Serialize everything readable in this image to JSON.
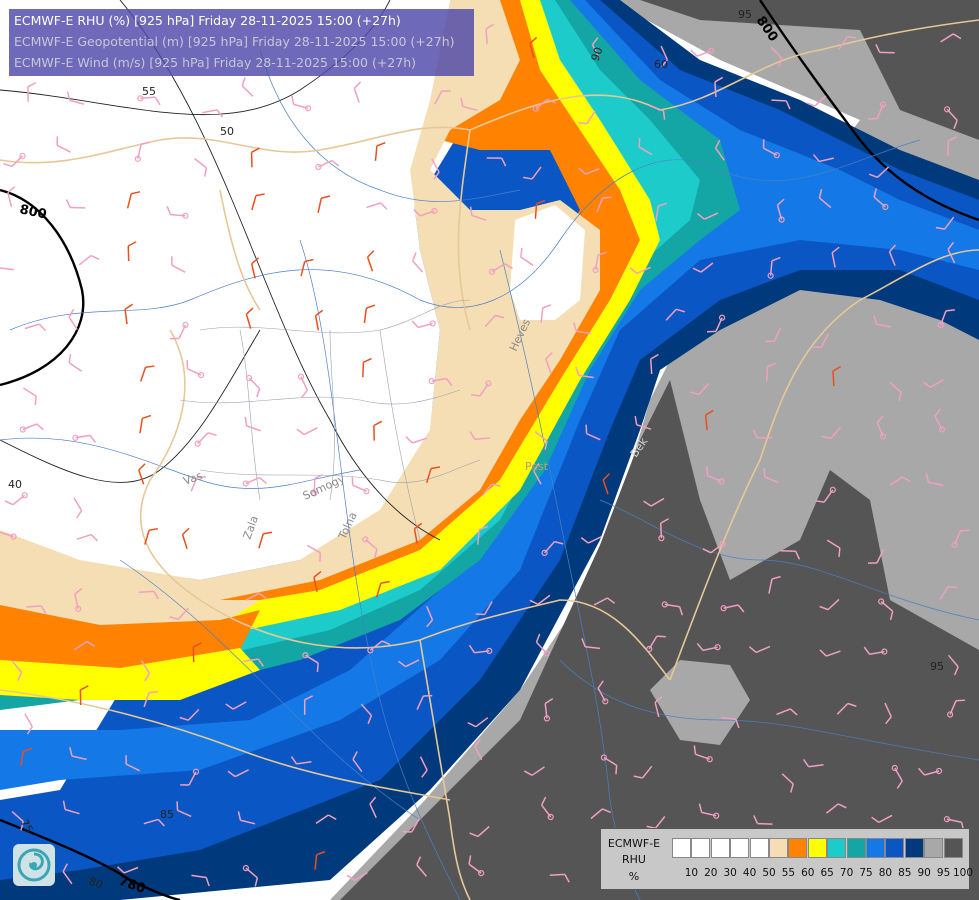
{
  "header": {
    "line1": "ECMWF-E RHU (%) [925 hPa] Friday 28-11-2025 15:00 (+27h)",
    "line2": "ECMWF-E Geopotential (m) [925 hPa] Friday 28-11-2025 15:00 (+27h)",
    "line3": "ECMWF-E Wind (m/s) [925 hPa] Friday 28-11-2025 15:00 (+27h)"
  },
  "legend": {
    "title_line1": "ECMWF-E",
    "title_line2": "RHU",
    "title_line3": "%",
    "swatch_colors": [
      "#ffffff",
      "#ffffff",
      "#ffffff",
      "#ffffff",
      "#ffffff",
      "#f5deb3",
      "#ff8200",
      "#ffff00",
      "#1ecbcb",
      "#14a5a5",
      "#1478e6",
      "#0a56c4",
      "#003a7c",
      "#a8a8a8",
      "#555555"
    ],
    "ticks": [
      "10",
      "20",
      "30",
      "40",
      "50",
      "55",
      "60",
      "65",
      "70",
      "75",
      "80",
      "85",
      "90",
      "95",
      "100"
    ]
  },
  "contour_labels": {
    "geopotential_800_west": "800",
    "geopotential_800_northeast": "800",
    "geopotential_780_south": "780",
    "rhu_55": "55",
    "rhu_50": "50",
    "rhu_40": "40",
    "rhu_60_north": "60",
    "rhu_90_north": "90",
    "rhu_95_north": "95",
    "rhu_95_east": "95",
    "rhu_85_south": "85",
    "rhu_80_south": "80",
    "rhu_75_south": "75"
  },
  "place_labels": {
    "vas": "Vas",
    "zala": "Zala",
    "somogy": "Somogy",
    "tolna": "Tolna",
    "pest": "Pest",
    "heves": "Heves",
    "bekes": "Bék"
  },
  "colors": {
    "rhu_55": "#f5deb3",
    "rhu_60": "#ff8200",
    "rhu_65": "#ffff00",
    "rhu_70": "#1ecbcb",
    "rhu_75": "#14a5a5",
    "rhu_80": "#1478e6",
    "rhu_85": "#0a56c4",
    "rhu_90": "#003a7c",
    "rhu_95": "#a8a8a8",
    "rhu_100": "#555555",
    "wind_light": "#f0a0c0",
    "wind_strong": "#e8501e",
    "border": "#e6c896",
    "river": "#4a80c8"
  }
}
